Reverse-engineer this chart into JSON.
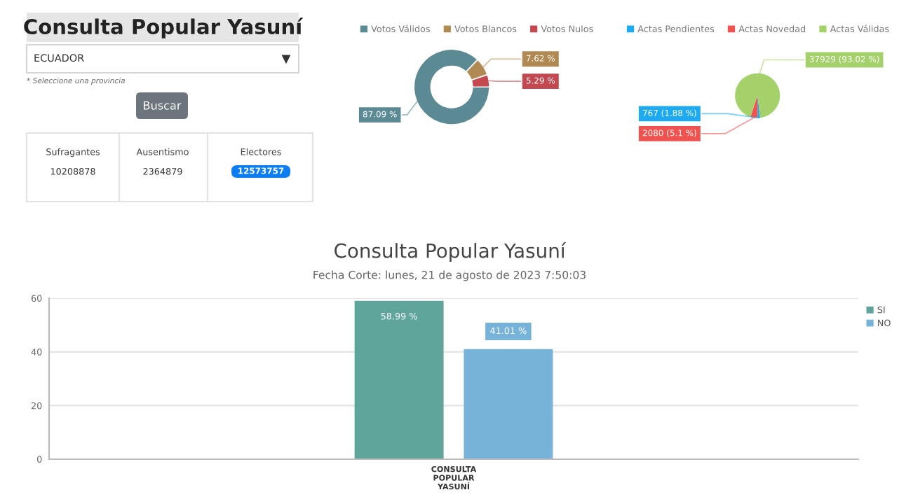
{
  "chart_data": [
    {
      "type": "other",
      "title": "Consulta Popular Yasuní",
      "annotations": [
        "ECUADOR",
        "* Seleccione una provincia",
        "Buscar",
        "Sufragantes",
        "10208878",
        "Ausentismo",
        "2364879",
        "Electores",
        "12573757"
      ]
    },
    {
      "type": "donut",
      "categories": [
        "Votos Válidos",
        "Votos Blancos",
        "Votos Nulos"
      ],
      "values": [
        87.09,
        7.62,
        5.29
      ],
      "colors": [
        "#5b8a94",
        "#b08a52",
        "#c4484f"
      ],
      "value_labels": [
        "87.09 %",
        "7.62 %",
        "5.29 %"
      ],
      "legend": "top"
    },
    {
      "type": "pie",
      "categories": [
        "Actas Pendientes",
        "Actas Novedad",
        "Actas Válidas"
      ],
      "values": [
        767,
        2080,
        37929
      ],
      "colors": [
        "#1eaaf1",
        "#f0524f",
        "#a5d16b"
      ],
      "value_labels": [
        "767 (1.88 %)",
        "2080 (5.1 %)",
        "37929 (93.02 %)"
      ],
      "legend": "top"
    },
    {
      "type": "bar",
      "title": "Consulta Popular Yasuní",
      "subtitle": "Fecha Corte: lunes, 21 de agosto de 2023 7:50:03",
      "categories": [
        "CONSULTA POPULAR YASUNÍ"
      ],
      "series": [
        {
          "name": "SI",
          "color": "#5fa59b",
          "values": [
            58.99
          ],
          "value_labels": [
            "58.99 %"
          ]
        },
        {
          "name": "NO",
          "color": "#77b3d8",
          "values": [
            41.01
          ],
          "value_labels": [
            "41.01 %"
          ]
        }
      ],
      "ylim": [
        0,
        60
      ],
      "yticks": [
        0,
        20,
        40,
        60
      ],
      "grid": "y",
      "legend": "right"
    }
  ]
}
